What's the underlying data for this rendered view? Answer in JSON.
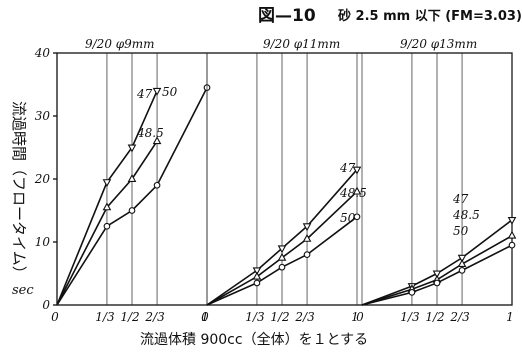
{
  "figure": {
    "title": "図—10",
    "subtitle": "砂 2.5 mm 以下 (FM=3.03)",
    "ylabel": "流過時間（フロータイム）",
    "yunit": "sec",
    "xlabel": "流過体積 900cc（全体）を１とする"
  },
  "chart_data": {
    "type": "line",
    "title": "図—10",
    "subtitle": "砂 2.5 mm 以下 (FM=3.03)",
    "ylabel": "流過時間（フロータイム）sec",
    "xlabel": "流過体積 900cc（全体）を１とする",
    "ylim": [
      0,
      40
    ],
    "yticks": [
      "0",
      "10",
      "20",
      "30",
      "40"
    ],
    "xticks": [
      "0",
      "1/3",
      "1/2",
      "2/3",
      "1"
    ],
    "grid": true,
    "panels": [
      {
        "label": "9/20 φ9mm",
        "x": [
          0,
          0.333,
          0.5,
          0.667,
          1
        ],
        "x_tick_labels": [
          "0",
          "1/3",
          "1/2",
          "2/3",
          "1"
        ],
        "series": [
          {
            "name": "47",
            "marker": "inverted-triangle",
            "x": [
              0,
              0.333,
              0.5,
              0.667
            ],
            "values": [
              0,
              19.5,
              25,
              34
            ]
          },
          {
            "name": "48.5",
            "marker": "triangle",
            "x": [
              0,
              0.333,
              0.5,
              0.667
            ],
            "values": [
              0,
              15.5,
              20,
              26
            ]
          },
          {
            "name": "50",
            "marker": "circle",
            "x": [
              0,
              0.333,
              0.5,
              0.667,
              1
            ],
            "values": [
              0,
              12.5,
              15,
              19,
              34.5
            ]
          }
        ]
      },
      {
        "label": "9/20 φ11mm",
        "x": [
          0,
          0.333,
          0.5,
          0.667,
          1
        ],
        "x_tick_labels": [
          "0",
          "1/3",
          "1/2",
          "2/3",
          "1"
        ],
        "series": [
          {
            "name": "47",
            "marker": "inverted-triangle",
            "x": [
              0,
              0.333,
              0.5,
              0.667,
              1
            ],
            "values": [
              0,
              5.5,
              9,
              12.5,
              21.5
            ]
          },
          {
            "name": "48.5",
            "marker": "triangle",
            "x": [
              0,
              0.333,
              0.5,
              0.667,
              1
            ],
            "values": [
              0,
              4.5,
              7.5,
              10.5,
              18
            ]
          },
          {
            "name": "50",
            "marker": "circle",
            "x": [
              0,
              0.333,
              0.5,
              0.667,
              1
            ],
            "values": [
              0,
              3.5,
              6,
              8,
              14
            ]
          }
        ]
      },
      {
        "label": "9/20 φ13mm",
        "x": [
          0,
          0.333,
          0.5,
          0.667,
          1
        ],
        "x_tick_labels": [
          "0",
          "1/3",
          "1/2",
          "2/3",
          "1"
        ],
        "series": [
          {
            "name": "47",
            "marker": "inverted-triangle",
            "x": [
              0,
              0.333,
              0.5,
              0.667,
              1
            ],
            "values": [
              0,
              3,
              5,
              7.5,
              13.5
            ]
          },
          {
            "name": "48.5",
            "marker": "triangle",
            "x": [
              0,
              0.333,
              0.5,
              0.667,
              1
            ],
            "values": [
              0,
              2.5,
              4,
              6.5,
              11
            ]
          },
          {
            "name": "50",
            "marker": "circle",
            "x": [
              0,
              0.333,
              0.5,
              0.667,
              1
            ],
            "values": [
              0,
              2,
              3.5,
              5.5,
              9.5
            ]
          }
        ]
      }
    ],
    "series_labels": [
      "47",
      "48.5",
      "50"
    ]
  }
}
